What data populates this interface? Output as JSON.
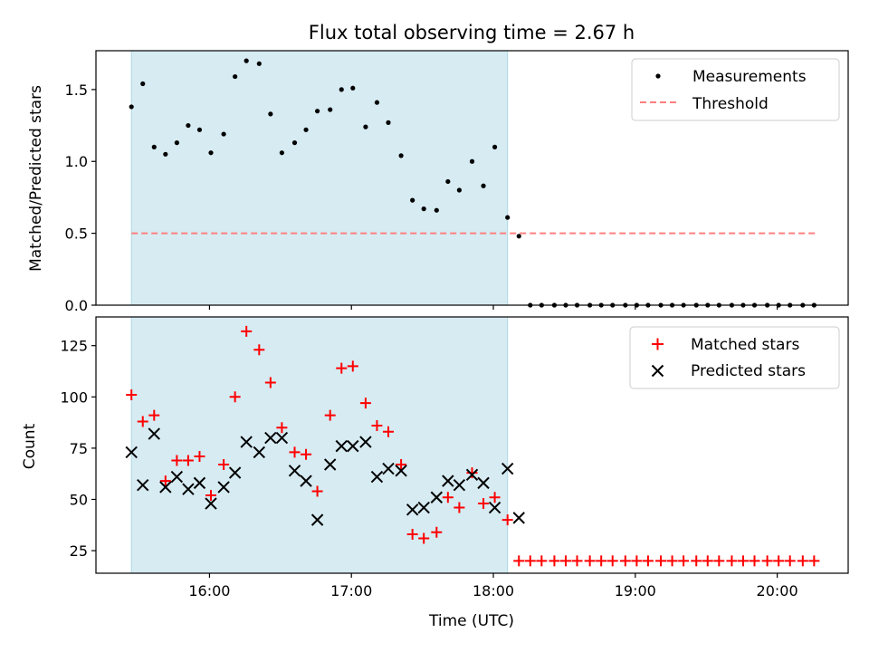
{
  "title": "Flux total observing time = 2.67 h",
  "xlabel": "Time (UTC)",
  "x_ticks": [
    {
      "label": "16:00",
      "value": 16.0
    },
    {
      "label": "17:00",
      "value": 17.0
    },
    {
      "label": "18:00",
      "value": 18.0
    },
    {
      "label": "19:00",
      "value": 19.0
    },
    {
      "label": "20:00",
      "value": 20.0
    }
  ],
  "colors": {
    "span": "#add8e6",
    "measurement": "#000000",
    "threshold": "#ff7f7f",
    "matched": "#ff0000",
    "predicted": "#000000"
  },
  "chart_data": [
    {
      "type": "scatter",
      "panel": "top",
      "ylabel": "Matched/Predicted stars",
      "xlim": [
        15.2,
        20.5
      ],
      "ylim": [
        0,
        1.77
      ],
      "y_ticks": [
        {
          "label": "0.0",
          "value": 0.0
        },
        {
          "label": "0.5",
          "value": 0.5
        },
        {
          "label": "1.0",
          "value": 1.0
        },
        {
          "label": "1.5",
          "value": 1.5
        }
      ],
      "shaded_span": [
        15.45,
        18.1
      ],
      "threshold": {
        "y": 0.5,
        "x": [
          15.45,
          20.28
        ]
      },
      "legend": {
        "position": "top-right",
        "entries": [
          {
            "label": "Measurements",
            "marker": "dot"
          },
          {
            "label": "Threshold",
            "marker": "dashed-line"
          }
        ]
      },
      "series": [
        {
          "name": "Measurements",
          "points": [
            [
              15.45,
              1.38
            ],
            [
              15.53,
              1.54
            ],
            [
              15.61,
              1.1
            ],
            [
              15.69,
              1.05
            ],
            [
              15.77,
              1.13
            ],
            [
              15.85,
              1.25
            ],
            [
              15.93,
              1.22
            ],
            [
              16.01,
              1.06
            ],
            [
              16.1,
              1.19
            ],
            [
              16.18,
              1.59
            ],
            [
              16.26,
              1.7
            ],
            [
              16.35,
              1.68
            ],
            [
              16.43,
              1.33
            ],
            [
              16.51,
              1.06
            ],
            [
              16.6,
              1.13
            ],
            [
              16.68,
              1.22
            ],
            [
              16.76,
              1.35
            ],
            [
              16.85,
              1.36
            ],
            [
              16.93,
              1.5
            ],
            [
              17.01,
              1.51
            ],
            [
              17.1,
              1.24
            ],
            [
              17.18,
              1.41
            ],
            [
              17.26,
              1.27
            ],
            [
              17.35,
              1.04
            ],
            [
              17.43,
              0.73
            ],
            [
              17.51,
              0.67
            ],
            [
              17.6,
              0.66
            ],
            [
              17.68,
              0.86
            ],
            [
              17.76,
              0.8
            ],
            [
              17.85,
              1.0
            ],
            [
              17.93,
              0.83
            ],
            [
              18.01,
              1.1
            ],
            [
              18.1,
              0.61
            ],
            [
              18.18,
              0.48
            ],
            [
              18.26,
              0
            ],
            [
              18.34,
              0
            ],
            [
              18.43,
              0
            ],
            [
              18.51,
              0
            ],
            [
              18.59,
              0
            ],
            [
              18.68,
              0
            ],
            [
              18.76,
              0
            ],
            [
              18.84,
              0
            ],
            [
              18.93,
              0
            ],
            [
              19.01,
              0
            ],
            [
              19.09,
              0
            ],
            [
              19.18,
              0
            ],
            [
              19.26,
              0
            ],
            [
              19.34,
              0
            ],
            [
              19.43,
              0
            ],
            [
              19.51,
              0
            ],
            [
              19.59,
              0
            ],
            [
              19.68,
              0
            ],
            [
              19.76,
              0
            ],
            [
              19.84,
              0
            ],
            [
              19.93,
              0
            ],
            [
              20.01,
              0
            ],
            [
              20.09,
              0
            ],
            [
              20.18,
              0
            ],
            [
              20.26,
              0
            ]
          ]
        }
      ]
    },
    {
      "type": "scatter",
      "panel": "bottom",
      "ylabel": "Count",
      "xlim": [
        15.2,
        20.5
      ],
      "ylim": [
        14,
        139
      ],
      "y_ticks": [
        {
          "label": "25",
          "value": 25
        },
        {
          "label": "50",
          "value": 50
        },
        {
          "label": "75",
          "value": 75
        },
        {
          "label": "100",
          "value": 100
        },
        {
          "label": "125",
          "value": 125
        }
      ],
      "shaded_span": [
        15.45,
        18.1
      ],
      "legend": {
        "position": "top-right",
        "entries": [
          {
            "label": "Matched stars",
            "marker": "plus"
          },
          {
            "label": "Predicted stars",
            "marker": "x"
          }
        ]
      },
      "series": [
        {
          "name": "Matched stars",
          "marker": "plus",
          "points": [
            [
              15.45,
              101
            ],
            [
              15.53,
              88
            ],
            [
              15.61,
              91
            ],
            [
              15.69,
              59
            ],
            [
              15.77,
              69
            ],
            [
              15.85,
              69
            ],
            [
              15.93,
              71
            ],
            [
              16.01,
              52
            ],
            [
              16.1,
              67
            ],
            [
              16.18,
              100
            ],
            [
              16.26,
              132
            ],
            [
              16.35,
              123
            ],
            [
              16.43,
              107
            ],
            [
              16.51,
              85
            ],
            [
              16.6,
              73
            ],
            [
              16.68,
              72
            ],
            [
              16.76,
              54
            ],
            [
              16.85,
              91
            ],
            [
              16.93,
              114
            ],
            [
              17.01,
              115
            ],
            [
              17.1,
              97
            ],
            [
              17.18,
              86
            ],
            [
              17.26,
              83
            ],
            [
              17.35,
              67
            ],
            [
              17.43,
              33
            ],
            [
              17.51,
              31
            ],
            [
              17.6,
              34
            ],
            [
              17.68,
              51
            ],
            [
              17.76,
              46
            ],
            [
              17.85,
              63
            ],
            [
              17.93,
              48
            ],
            [
              18.01,
              51
            ],
            [
              18.1,
              40
            ],
            [
              18.18,
              20
            ],
            [
              18.26,
              20
            ],
            [
              18.34,
              20
            ],
            [
              18.43,
              20
            ],
            [
              18.51,
              20
            ],
            [
              18.59,
              20
            ],
            [
              18.68,
              20
            ],
            [
              18.76,
              20
            ],
            [
              18.84,
              20
            ],
            [
              18.93,
              20
            ],
            [
              19.01,
              20
            ],
            [
              19.09,
              20
            ],
            [
              19.18,
              20
            ],
            [
              19.26,
              20
            ],
            [
              19.34,
              20
            ],
            [
              19.43,
              20
            ],
            [
              19.51,
              20
            ],
            [
              19.59,
              20
            ],
            [
              19.68,
              20
            ],
            [
              19.76,
              20
            ],
            [
              19.84,
              20
            ],
            [
              19.93,
              20
            ],
            [
              20.01,
              20
            ],
            [
              20.09,
              20
            ],
            [
              20.18,
              20
            ],
            [
              20.26,
              20
            ]
          ]
        },
        {
          "name": "Predicted stars",
          "marker": "x",
          "points": [
            [
              15.45,
              73
            ],
            [
              15.53,
              57
            ],
            [
              15.61,
              82
            ],
            [
              15.69,
              56
            ],
            [
              15.77,
              61
            ],
            [
              15.85,
              55
            ],
            [
              15.93,
              58
            ],
            [
              16.01,
              48
            ],
            [
              16.1,
              56
            ],
            [
              16.18,
              63
            ],
            [
              16.26,
              78
            ],
            [
              16.35,
              73
            ],
            [
              16.43,
              80
            ],
            [
              16.51,
              80
            ],
            [
              16.6,
              64
            ],
            [
              16.68,
              59
            ],
            [
              16.76,
              40
            ],
            [
              16.85,
              67
            ],
            [
              16.93,
              76
            ],
            [
              17.01,
              76
            ],
            [
              17.1,
              78
            ],
            [
              17.18,
              61
            ],
            [
              17.26,
              65
            ],
            [
              17.35,
              64
            ],
            [
              17.43,
              45
            ],
            [
              17.51,
              46
            ],
            [
              17.6,
              51
            ],
            [
              17.68,
              59
            ],
            [
              17.76,
              57
            ],
            [
              17.85,
              62
            ],
            [
              17.93,
              58
            ],
            [
              18.01,
              46
            ],
            [
              18.1,
              65
            ],
            [
              18.18,
              41
            ]
          ]
        }
      ]
    }
  ]
}
